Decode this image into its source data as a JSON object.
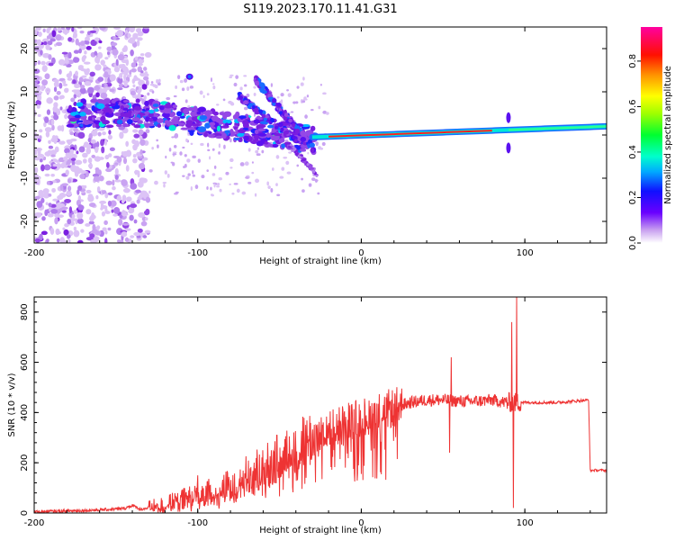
{
  "title": "S119.2023.170.11.41.G31",
  "colors": {
    "snr_line": "#ee3333",
    "freq_track": "#ff2020",
    "cloud": "#8a2be2"
  },
  "chart_data": [
    {
      "id": "spectrogram",
      "type": "heatmap",
      "xlabel": "Height of straight line (km)",
      "ylabel": "Frequency (Hz)",
      "xlim": [
        -200,
        150
      ],
      "ylim": [
        -25,
        25
      ],
      "x_ticks": [
        -200,
        -100,
        0,
        100
      ],
      "x_tick_labels": [
        "-200",
        "-100",
        "0",
        "100"
      ],
      "y_ticks": [
        -20,
        -10,
        0,
        10,
        20
      ],
      "y_tick_labels": [
        "-20",
        "-10",
        "0",
        "10",
        "20"
      ],
      "colorbar": {
        "label": "Normalized spectral amplitude",
        "range": [
          0,
          0.95
        ],
        "ticks": [
          0,
          0.2,
          0.4,
          0.6,
          0.8
        ],
        "tick_labels": [
          "0.0",
          "0.2",
          "0.4",
          "0.6",
          "0.8"
        ],
        "colormap": "rainbow (purple-blue-cyan-green-yellow-red-magenta)"
      },
      "features": [
        {
          "name": "noise-cloud",
          "x_range": [
            -200,
            -130
          ],
          "freq_range": [
            -25,
            25
          ]
        },
        {
          "name": "doppler-band",
          "x_range": [
            -175,
            -30
          ],
          "freq_range": [
            -5,
            8
          ]
        },
        {
          "name": "doppler-arc",
          "x_range": [
            -65,
            -30
          ],
          "freq_range": [
            -3,
            13
          ]
        },
        {
          "name": "steady-track",
          "x_range": [
            -30,
            150
          ],
          "freq_range": [
            0,
            2
          ]
        }
      ]
    },
    {
      "id": "snr",
      "type": "line",
      "xlabel": "Height of straight line (km)",
      "ylabel": "SNR (10 * v/v)",
      "xlim": [
        -200,
        150
      ],
      "ylim": [
        0,
        860
      ],
      "x_ticks": [
        -200,
        -100,
        0,
        100
      ],
      "x_tick_labels": [
        "-200",
        "-100",
        "0",
        "100"
      ],
      "y_ticks": [
        0,
        200,
        400,
        600,
        800
      ],
      "y_tick_labels": [
        "0",
        "200",
        "400",
        "600",
        "800"
      ],
      "series": [
        {
          "points": [
            [
              -200,
              5
            ],
            [
              -180,
              8
            ],
            [
              -160,
              12
            ],
            [
              -145,
              18
            ],
            [
              -140,
              30
            ],
            [
              -135,
              15
            ],
            [
              -120,
              30
            ],
            [
              -110,
              50
            ],
            [
              -100,
              65
            ],
            [
              -90,
              80
            ],
            [
              -80,
              100
            ],
            [
              -70,
              150
            ],
            [
              -60,
              180
            ],
            [
              -50,
              220
            ],
            [
              -40,
              260
            ],
            [
              -30,
              300
            ],
            [
              -20,
              330
            ],
            [
              -10,
              360
            ],
            [
              0,
              380
            ],
            [
              10,
              400
            ],
            [
              20,
              420
            ],
            [
              30,
              440
            ],
            [
              40,
              450
            ],
            [
              50,
              450
            ],
            [
              60,
              445
            ],
            [
              70,
              445
            ],
            [
              80,
              450
            ],
            [
              88,
              440
            ],
            [
              95,
              440
            ],
            [
              100,
              440
            ],
            [
              110,
              440
            ],
            [
              120,
              440
            ],
            [
              130,
              445
            ],
            [
              139,
              450
            ],
            [
              140,
              170
            ],
            [
              150,
              170
            ]
          ],
          "spikes": [
            [
              -140,
              35
            ],
            [
              -100,
              150
            ],
            [
              -55,
              250
            ],
            [
              -20,
              350
            ],
            [
              55,
              620
            ],
            [
              54,
              240
            ],
            [
              95,
              860
            ],
            [
              93,
              20
            ],
            [
              92,
              760
            ]
          ]
        }
      ]
    }
  ]
}
